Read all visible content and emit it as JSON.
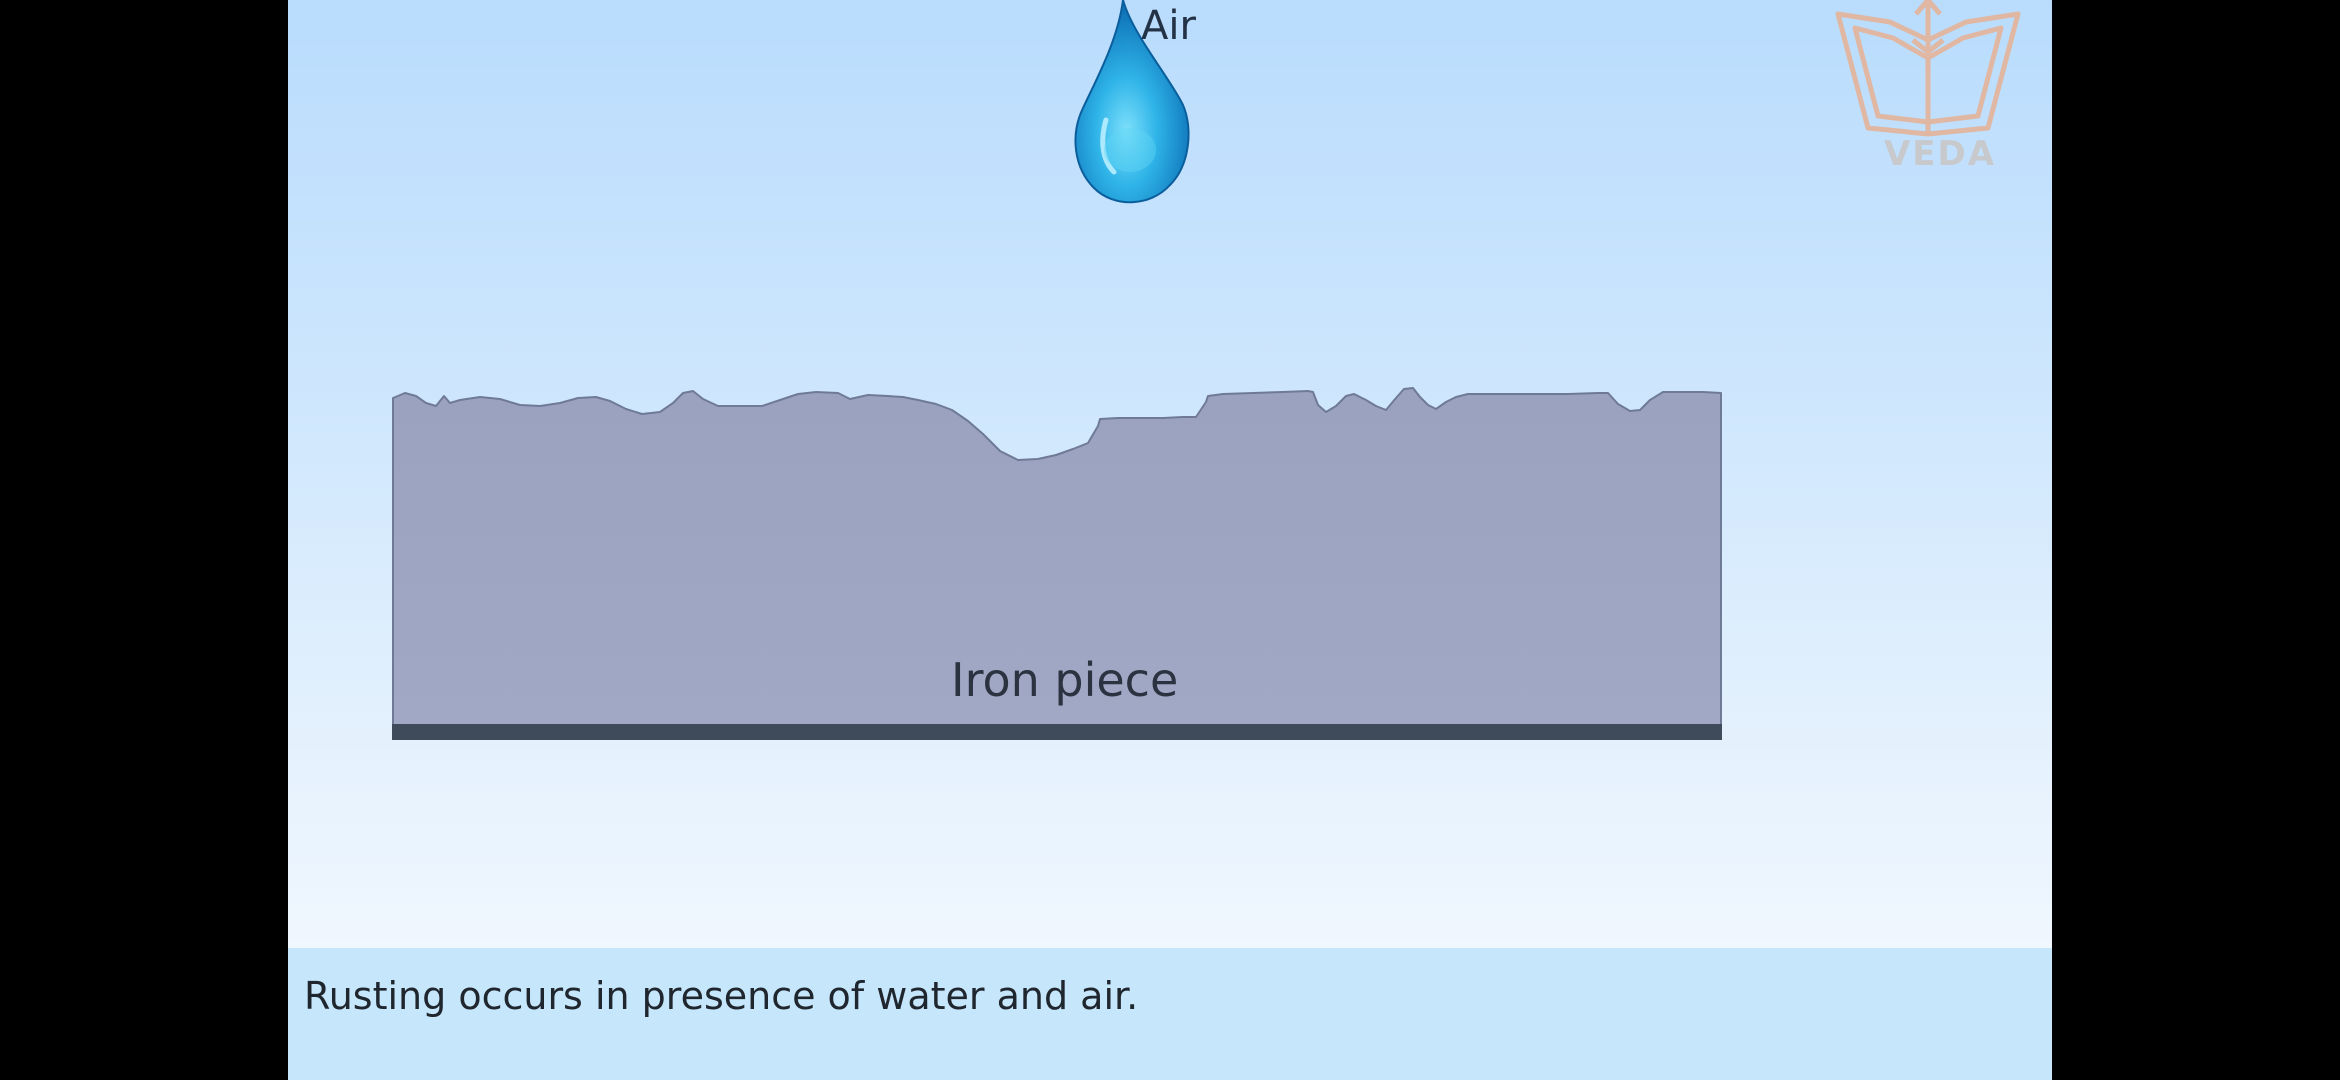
{
  "scene": {
    "air_label": "Air",
    "iron_label": "Iron piece",
    "caption": "Rusting occurs in presence of water and air.",
    "logo_text": "VEDA"
  },
  "icons": {
    "drop": "water-drop-icon",
    "logo": "veda-book-logo-icon"
  },
  "colors": {
    "iron": "#9ca5c3",
    "iron_base": "#3f4a5a",
    "water": "#2fb1e6",
    "logo": "#e0b7a2",
    "caption_bg": "#c5e6fb"
  }
}
